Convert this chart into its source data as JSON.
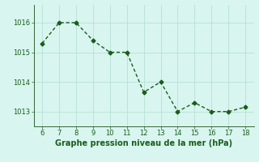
{
  "x": [
    6,
    7,
    8,
    9,
    10,
    11,
    12,
    13,
    14,
    15,
    16,
    17,
    18
  ],
  "y": [
    1015.3,
    1016.0,
    1016.0,
    1015.4,
    1015.0,
    1015.0,
    1013.65,
    1014.0,
    1013.0,
    1013.3,
    1013.0,
    1013.0,
    1013.15
  ],
  "line_color": "#1a5c1a",
  "marker": "D",
  "marker_size": 2.5,
  "bg_color": "#d8f5f0",
  "grid_color": "#b0ddd0",
  "xlabel": "Graphe pression niveau de la mer (hPa)",
  "xlabel_color": "#1a5c1a",
  "xlabel_fontsize": 7,
  "xlim": [
    5.5,
    18.5
  ],
  "ylim": [
    1012.5,
    1016.6
  ],
  "yticks": [
    1013,
    1014,
    1015,
    1016
  ],
  "xticks": [
    6,
    7,
    8,
    9,
    10,
    11,
    12,
    13,
    14,
    15,
    16,
    17,
    18
  ],
  "tick_fontsize": 6,
  "tick_color": "#1a5c1a",
  "spine_color": "#336633",
  "line_width": 1.0
}
